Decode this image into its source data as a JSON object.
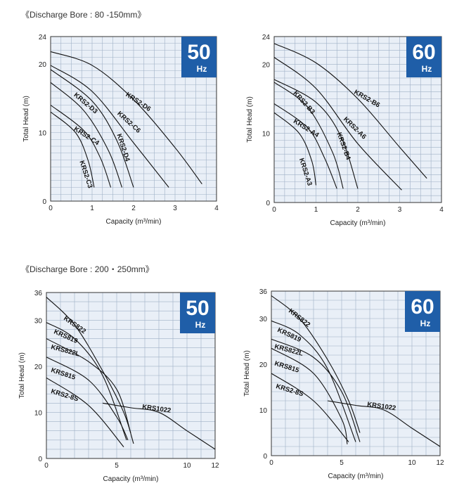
{
  "sections": [
    {
      "title": "《Discharge Bore : 80 -150mm》"
    },
    {
      "title": "《Discharge Bore : 200・250mm》"
    }
  ],
  "colors": {
    "plot_bg": "#e9eff7",
    "grid": "#9fb0c6",
    "badge": "#1f5ea8",
    "curve": "#111111"
  },
  "chart_data": [
    {
      "type": "line",
      "badge_num": "50",
      "badge_unit": "Hz",
      "xlabel": "Capacity (m³/min)",
      "ylabel": "Total Head (m)",
      "xlim": [
        0,
        4
      ],
      "ylim": [
        0,
        24
      ],
      "xticks": [
        0,
        1,
        2,
        3,
        4
      ],
      "yticks": [
        0,
        10,
        20,
        24
      ],
      "grid": true,
      "series": [
        {
          "name": "KRS2-D6",
          "points": [
            [
              0,
              21.8
            ],
            [
              1,
              19.8
            ],
            [
              2,
              14.8
            ],
            [
              3,
              7.8
            ],
            [
              3.65,
              2.5
            ]
          ],
          "label_at": [
            1.8,
            15.4
          ],
          "angle": 34
        },
        {
          "name": "KRS2-C6",
          "points": [
            [
              0,
              19.8
            ],
            [
              1,
              16.0
            ],
            [
              2,
              8.5
            ],
            [
              2.85,
              2.0
            ]
          ],
          "label_at": [
            1.6,
            12.7
          ],
          "angle": 42
        },
        {
          "name": "KRS2-D4",
          "points": [
            [
              0,
              19.2
            ],
            [
              1,
              14.6
            ],
            [
              1.6,
              8.8
            ],
            [
              2.0,
              2.0
            ]
          ],
          "label_at": [
            1.6,
            9.7
          ],
          "angle": 72
        },
        {
          "name": "KRS2-D3",
          "points": [
            [
              0,
              17.3
            ],
            [
              0.8,
              13.2
            ],
            [
              1.4,
              7.3
            ],
            [
              1.72,
              2.0
            ]
          ],
          "label_at": [
            0.55,
            15.4
          ],
          "angle": 40
        },
        {
          "name": "KRS2-C4",
          "points": [
            [
              0,
              14.0
            ],
            [
              0.8,
              10.3
            ],
            [
              1.2,
              6.3
            ],
            [
              1.45,
              2.0
            ]
          ],
          "label_at": [
            0.55,
            10.4
          ],
          "angle": 33
        },
        {
          "name": "KRS2-C3",
          "points": [
            [
              0,
              13.0
            ],
            [
              0.6,
              10.0
            ],
            [
              0.9,
              6.0
            ],
            [
              1.05,
              2.0
            ]
          ],
          "label_at": [
            0.7,
            5.8
          ],
          "angle": 72
        }
      ]
    },
    {
      "type": "line",
      "badge_num": "60",
      "badge_unit": "Hz",
      "xlabel": "Capacity (m³/min)",
      "ylabel": "Total Head (m)",
      "xlim": [
        0,
        4
      ],
      "ylim": [
        0,
        24
      ],
      "xticks": [
        0,
        1,
        2,
        3,
        4
      ],
      "yticks": [
        0,
        10,
        20,
        24
      ],
      "grid": true,
      "series": [
        {
          "name": "KRS2-B6",
          "points": [
            [
              0,
              23.0
            ],
            [
              1,
              20.2
            ],
            [
              2,
              15.0
            ],
            [
              3,
              8.0
            ],
            [
              3.65,
              3.5
            ]
          ],
          "label_at": [
            1.9,
            15.8
          ],
          "angle": 30
        },
        {
          "name": "KRS2-A6",
          "points": [
            [
              0,
              21.0
            ],
            [
              1,
              16.5
            ],
            [
              2,
              8.5
            ],
            [
              3.05,
              1.8
            ]
          ],
          "label_at": [
            1.65,
            12.0
          ],
          "angle": 44
        },
        {
          "name": "KRS2-B4",
          "points": [
            [
              0,
              17.8
            ],
            [
              1,
              14.5
            ],
            [
              1.6,
              9.5
            ],
            [
              2.0,
              2.0
            ]
          ],
          "label_at": [
            1.5,
            10.0
          ],
          "angle": 70
        },
        {
          "name": "KRS2-B3",
          "points": [
            [
              0,
              17.4
            ],
            [
              0.8,
              13.8
            ],
            [
              1.4,
              7.2
            ],
            [
              1.65,
              2.0
            ]
          ],
          "label_at": [
            0.45,
            15.8
          ],
          "angle": 48
        },
        {
          "name": "KRS2-A4",
          "points": [
            [
              0,
              14.3
            ],
            [
              0.8,
              10.8
            ],
            [
              1.2,
              6.5
            ],
            [
              1.5,
              2.0
            ]
          ],
          "label_at": [
            0.45,
            11.6
          ],
          "angle": 32
        },
        {
          "name": "KRS2-A3",
          "points": [
            [
              0,
              13.0
            ],
            [
              0.6,
              10.0
            ],
            [
              0.9,
              6.0
            ],
            [
              1.0,
              2.5
            ]
          ],
          "label_at": [
            0.6,
            6.3
          ],
          "angle": 72
        }
      ]
    },
    {
      "type": "line",
      "badge_num": "50",
      "badge_unit": "Hz",
      "xlabel": "Capacity (m³/min)",
      "ylabel": "Total Head (m)",
      "xlim": [
        0,
        12
      ],
      "ylim": [
        0,
        36
      ],
      "xticks": [
        0,
        5,
        10,
        12
      ],
      "yticks": [
        0,
        10,
        20,
        30,
        36
      ],
      "grid": true,
      "series": [
        {
          "name": "KRS822",
          "points": [
            [
              0,
              35.0
            ],
            [
              2,
              29.0
            ],
            [
              4,
              19.0
            ],
            [
              5.5,
              10.0
            ],
            [
              6.2,
              3.2
            ]
          ],
          "label_at": [
            1.2,
            30.2
          ],
          "angle": 35
        },
        {
          "name": "KRS819",
          "points": [
            [
              0,
              29.5
            ],
            [
              2,
              26.0
            ],
            [
              4,
              18.0
            ],
            [
              5.7,
              4.0
            ]
          ],
          "label_at": [
            0.5,
            27.2
          ],
          "angle": 24
        },
        {
          "name": "KRS822L",
          "points": [
            [
              0,
              26.0
            ],
            [
              3,
              21.0
            ],
            [
              5,
              15.0
            ],
            [
              6.0,
              5.5
            ]
          ],
          "label_at": [
            0.3,
            23.8
          ],
          "angle": 15
        },
        {
          "name": "KRS815",
          "points": [
            [
              0,
              22.0
            ],
            [
              3,
              17.0
            ],
            [
              5,
              9.0
            ],
            [
              5.8,
              4.0
            ]
          ],
          "label_at": [
            0.3,
            18.8
          ],
          "angle": 18
        },
        {
          "name": "KRS2-8S",
          "points": [
            [
              0,
              17.5
            ],
            [
              3,
              11.5
            ],
            [
              5.5,
              2.5
            ]
          ],
          "label_at": [
            0.3,
            14.2
          ],
          "angle": 17
        },
        {
          "name": "KRS1022",
          "points": [
            [
              4,
              12.0
            ],
            [
              6,
              11.0
            ],
            [
              8,
              10.0
            ],
            [
              10,
              6.0
            ],
            [
              12,
              2.0
            ]
          ],
          "label_at": [
            6.8,
            10.8
          ],
          "angle": 8
        }
      ]
    },
    {
      "type": "line",
      "badge_num": "60",
      "badge_unit": "Hz",
      "xlabel": "Capacity (m³/min)",
      "ylabel": "Total Head (m)",
      "xlim": [
        0,
        12
      ],
      "ylim": [
        0,
        36
      ],
      "xticks": [
        0,
        5,
        10,
        12
      ],
      "yticks": [
        0,
        10,
        20,
        30,
        36
      ],
      "grid": true,
      "series": [
        {
          "name": "KRS822",
          "points": [
            [
              0,
              35.0
            ],
            [
              2,
              30.0
            ],
            [
              4,
              21.0
            ],
            [
              5.5,
              12.0
            ],
            [
              6.3,
              5.0
            ]
          ],
          "label_at": [
            1.2,
            31.5
          ],
          "angle": 38
        },
        {
          "name": "KRS819",
          "points": [
            [
              0,
              29.5
            ],
            [
              2,
              26.5
            ],
            [
              4,
              19.0
            ],
            [
              6.0,
              3.0
            ]
          ],
          "label_at": [
            0.4,
            27.2
          ],
          "angle": 25
        },
        {
          "name": "KRS822L",
          "points": [
            [
              0,
              25.5
            ],
            [
              3,
              21.5
            ],
            [
              5,
              14.0
            ],
            [
              6.3,
              3.0
            ]
          ],
          "label_at": [
            0.2,
            23.5
          ],
          "angle": 15
        },
        {
          "name": "KRS815",
          "points": [
            [
              0,
              23.5
            ],
            [
              3,
              18.0
            ],
            [
              5,
              8.0
            ],
            [
              5.4,
              2.5
            ]
          ],
          "label_at": [
            0.2,
            19.8
          ],
          "angle": 17
        },
        {
          "name": "KRS2-8S",
          "points": [
            [
              0,
              18.0
            ],
            [
              3,
              12.0
            ],
            [
              5.5,
              3.0
            ]
          ],
          "label_at": [
            0.3,
            14.8
          ],
          "angle": 17
        },
        {
          "name": "KRS1022",
          "points": [
            [
              4,
              12.0
            ],
            [
              6,
              11.0
            ],
            [
              8,
              10.0
            ],
            [
              10,
              6.0
            ],
            [
              12,
              2.0
            ]
          ],
          "label_at": [
            6.8,
            10.8
          ],
          "angle": 8
        }
      ]
    }
  ]
}
